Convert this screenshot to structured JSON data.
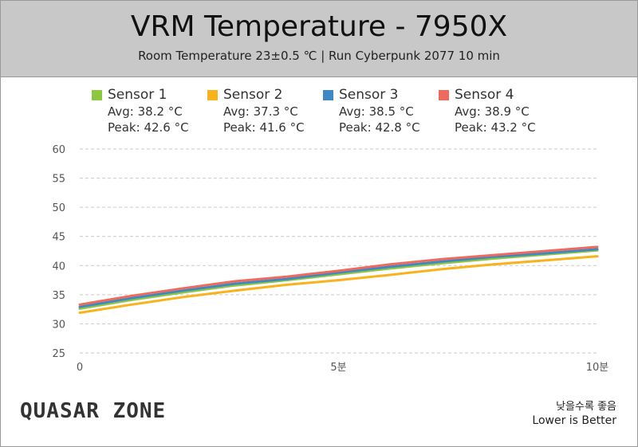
{
  "header": {
    "title": "VRM Temperature - 7950X",
    "subtitle": "Room Temperature 23±0.5 ℃  |  Run Cyberpunk 2077 10 min"
  },
  "legend": [
    {
      "name": "Sensor 1",
      "avg": "Avg: 38.2 °C",
      "peak": "Peak: 42.6 °C",
      "color": "#8dc63f"
    },
    {
      "name": "Sensor 2",
      "avg": "Avg: 37.3 °C",
      "peak": "Peak: 41.6 °C",
      "color": "#f9b21b"
    },
    {
      "name": "Sensor 3",
      "avg": "Avg: 38.5 °C",
      "peak": "Peak: 42.8 °C",
      "color": "#3d88c5"
    },
    {
      "name": "Sensor 4",
      "avg": "Avg: 38.9 °C",
      "peak": "Peak: 43.2 °C",
      "color": "#f06a5b"
    }
  ],
  "chart_data": {
    "type": "line",
    "title": "VRM Temperature - 7950X",
    "xlabel": "",
    "ylabel": "",
    "xlim": [
      0,
      10
    ],
    "ylim": [
      25,
      60
    ],
    "yticks": [
      "60",
      "55",
      "50",
      "45",
      "40",
      "35",
      "30",
      "25"
    ],
    "xticks": [
      {
        "value": 0,
        "label": "0"
      },
      {
        "value": 5,
        "label": "5분"
      },
      {
        "value": 10,
        "label": "10분"
      }
    ],
    "grid": true,
    "legend": "top",
    "x": [
      0,
      1,
      2,
      3,
      4,
      5,
      6,
      7,
      8,
      9,
      10
    ],
    "series": [
      {
        "name": "Sensor 1",
        "color": "#8dc63f",
        "values": [
          32.6,
          34.1,
          35.4,
          36.6,
          37.5,
          38.5,
          39.5,
          40.4,
          41.2,
          41.9,
          42.6
        ]
      },
      {
        "name": "Sensor 2",
        "color": "#f9b21b",
        "values": [
          31.9,
          33.3,
          34.6,
          35.7,
          36.7,
          37.5,
          38.4,
          39.4,
          40.2,
          40.9,
          41.6
        ]
      },
      {
        "name": "Sensor 3",
        "color": "#3d88c5",
        "values": [
          32.9,
          34.4,
          35.7,
          36.9,
          37.7,
          38.8,
          39.8,
          40.7,
          41.5,
          42.1,
          42.8
        ]
      },
      {
        "name": "Sensor 4",
        "color": "#f06a5b",
        "values": [
          33.3,
          34.8,
          36.1,
          37.3,
          38.1,
          39.1,
          40.2,
          41.1,
          41.8,
          42.5,
          43.2
        ]
      }
    ]
  },
  "branding": {
    "logo_text": "QUASAR ZONE",
    "note_ko": "낮을수록 좋음",
    "note_en": "Lower is Better"
  }
}
